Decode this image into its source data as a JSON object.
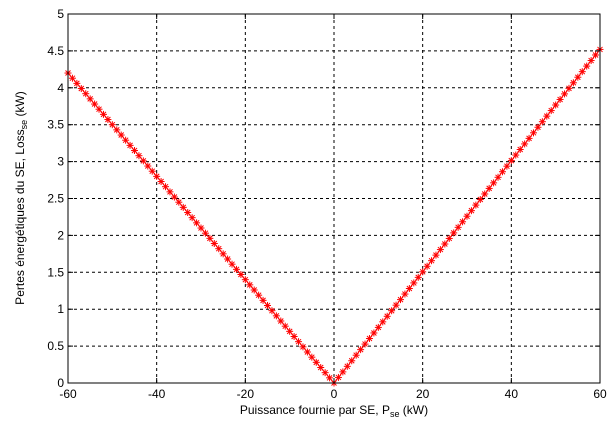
{
  "chart_data": {
    "type": "line",
    "title": "",
    "xlabel": {
      "main": "Puissance fournie par SE, P",
      "subscript": "se",
      "unit": " (kW)"
    },
    "ylabel": {
      "main": "Pertes énergétiques du SE, Loss",
      "subscript": "se",
      "unit": " (kW)"
    },
    "xlim": [
      -60,
      60
    ],
    "ylim": [
      0,
      5
    ],
    "xticks": [
      -60,
      -40,
      -20,
      0,
      20,
      40,
      60
    ],
    "yticks": [
      0,
      0.5,
      1,
      1.5,
      2,
      2.5,
      3,
      3.5,
      4,
      4.5,
      5
    ],
    "xtick_labels": [
      "-60",
      "-40",
      "-20",
      "0",
      "20",
      "40",
      "60"
    ],
    "ytick_labels": [
      "0",
      "0.5",
      "1",
      "1.5",
      "2",
      "2.5",
      "3",
      "3.5",
      "4",
      "4.5",
      "5"
    ],
    "grid": true,
    "grid_style": "dashed",
    "legend": "none",
    "series": [
      {
        "marker": "star",
        "color": "#ff0000",
        "line_color": "#ff0000",
        "points": [
          {
            "x": -60,
            "y": 4.2
          },
          {
            "x": 0,
            "y": 0.0
          },
          {
            "x": 60,
            "y": 4.52
          }
        ],
        "marker_step": 1
      }
    ]
  }
}
